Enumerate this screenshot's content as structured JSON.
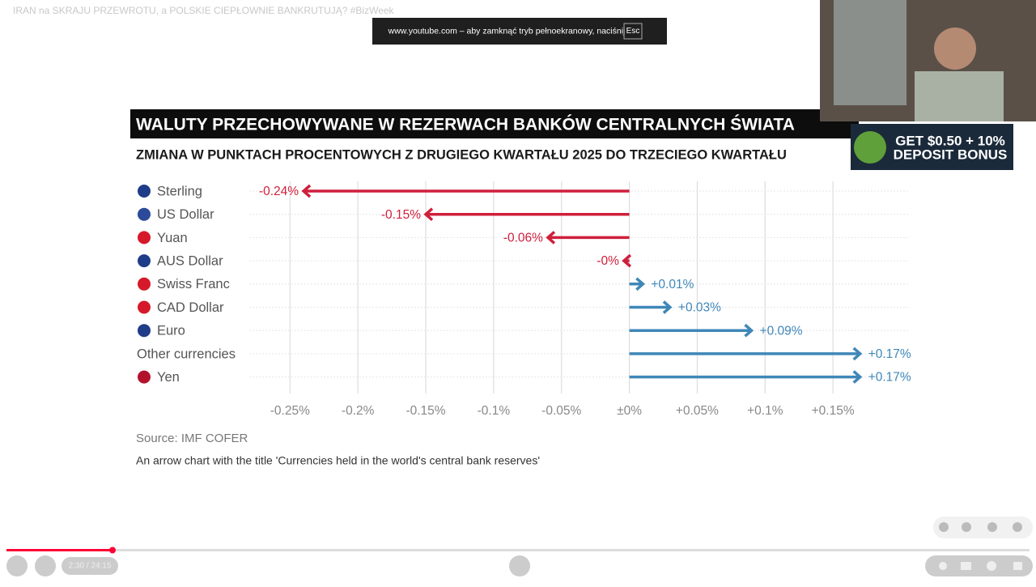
{
  "video": {
    "title": "IRAN na SKRAJU PRZEWROTU, a POLSKIE CIEPŁOWNIE BANKRUTUJĄ? #BizWeek",
    "fullscreen_notice": "www.youtube.com – aby zamknąć tryb pełnoekranowy, naciśnij",
    "esc_key": "Esc",
    "time": "2:30 / 24:15",
    "ad_line1": "GET $0.50 + 10%",
    "ad_line2": "DEPOSIT BONUS"
  },
  "chart_data": {
    "type": "arrow",
    "title": "WALUTY PRZECHOWYWANE W REZERWACH BANKÓW CENTRALNYCH ŚWIATA",
    "subtitle": "ZMIANA W PUNKTACH PROCENTOWYCH Z DRUGIEGO KWARTAŁU 2025 DO TRZECIEGO KWARTAŁU",
    "categories": [
      "Sterling",
      "US Dollar",
      "Yuan",
      "AUS Dollar",
      "Swiss Franc",
      "CAD Dollar",
      "Euro",
      "Other currencies",
      "Yen"
    ],
    "values": [
      -0.24,
      -0.15,
      -0.06,
      -0.004,
      0.01,
      0.03,
      0.09,
      0.17,
      0.17
    ],
    "value_labels": [
      "-0.24%",
      "-0.15%",
      "-0.06%",
      "-0%",
      "+0.01%",
      "+0.03%",
      "+0.09%",
      "+0.17%",
      "+0.17%"
    ],
    "negative_color": "#cf1f3c",
    "positive_color": "#3f87b8",
    "xlim": [
      -0.28,
      0.2
    ],
    "xticks": [
      {
        "value": -0.25,
        "label": "-0.25%"
      },
      {
        "value": -0.2,
        "label": "-0.2%"
      },
      {
        "value": -0.15,
        "label": "-0.15%"
      },
      {
        "value": -0.1,
        "label": "-0.1%"
      },
      {
        "value": -0.05,
        "label": "-0.05%"
      },
      {
        "value": 0,
        "label": "±0%"
      },
      {
        "value": 0.05,
        "label": "+0.05%"
      },
      {
        "value": 0.1,
        "label": "+0.1%"
      },
      {
        "value": 0.15,
        "label": "+0.15%"
      }
    ],
    "grid": true,
    "source": "Source: IMF COFER",
    "caption": "An arrow chart with the title 'Currencies held in the world's central bank reserves'"
  }
}
